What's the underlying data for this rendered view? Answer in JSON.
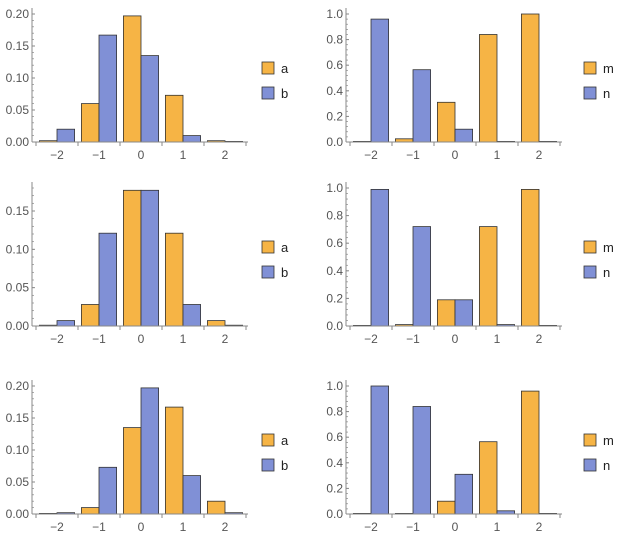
{
  "colors": {
    "series1": "#F6B445",
    "series2": "#8090D6",
    "axis": "#888888",
    "text": "#555555",
    "bar_edge": "#333333"
  },
  "chart_data": [
    {
      "type": "bar",
      "categories": [
        "-2",
        "-1",
        "0",
        "1",
        "2"
      ],
      "series": [
        {
          "name": "a",
          "values": [
            0.002,
            0.06,
            0.197,
            0.073,
            0.002
          ]
        },
        {
          "name": "b",
          "values": [
            0.02,
            0.167,
            0.135,
            0.01,
            0.0
          ]
        }
      ],
      "ylim": [
        0,
        0.2
      ],
      "yticks": [
        "0.00",
        "0.05",
        "0.10",
        "0.15",
        "0.20"
      ],
      "legend": "right"
    },
    {
      "type": "bar",
      "categories": [
        "-2",
        "-1",
        "0",
        "1",
        "2"
      ],
      "series": [
        {
          "name": "m",
          "values": [
            0.0,
            0.025,
            0.31,
            0.84,
            1.0
          ]
        },
        {
          "name": "n",
          "values": [
            0.96,
            0.565,
            0.1,
            0.0,
            0.0
          ]
        }
      ],
      "ylim": [
        0,
        1.0
      ],
      "yticks": [
        "0.0",
        "0.2",
        "0.4",
        "0.6",
        "0.8",
        "1.0"
      ],
      "legend": "right"
    },
    {
      "type": "bar",
      "categories": [
        "-2",
        "-1",
        "0",
        "1",
        "2"
      ],
      "series": [
        {
          "name": "a",
          "values": [
            0.001,
            0.028,
            0.177,
            0.121,
            0.007
          ]
        },
        {
          "name": "b",
          "values": [
            0.007,
            0.121,
            0.177,
            0.028,
            0.001
          ]
        }
      ],
      "ylim": [
        0,
        0.18
      ],
      "yticks": [
        "0.00",
        "0.05",
        "0.10",
        "0.15"
      ],
      "legend": "right"
    },
    {
      "type": "bar",
      "categories": [
        "-2",
        "-1",
        "0",
        "1",
        "2"
      ],
      "series": [
        {
          "name": "m",
          "values": [
            0.0,
            0.01,
            0.19,
            0.72,
            0.99
          ]
        },
        {
          "name": "n",
          "values": [
            0.99,
            0.72,
            0.19,
            0.01,
            0.0
          ]
        }
      ],
      "ylim": [
        0,
        1.0
      ],
      "yticks": [
        "0.0",
        "0.2",
        "0.4",
        "0.6",
        "0.8",
        "1.0"
      ],
      "legend": "right"
    },
    {
      "type": "bar",
      "categories": [
        "-2",
        "-1",
        "0",
        "1",
        "2"
      ],
      "series": [
        {
          "name": "a",
          "values": [
            0.0,
            0.01,
            0.135,
            0.167,
            0.02
          ]
        },
        {
          "name": "b",
          "values": [
            0.002,
            0.073,
            0.197,
            0.06,
            0.002
          ]
        }
      ],
      "ylim": [
        0,
        0.2
      ],
      "yticks": [
        "0.00",
        "0.05",
        "0.10",
        "0.15",
        "0.20"
      ],
      "legend": "right"
    },
    {
      "type": "bar",
      "categories": [
        "-2",
        "-1",
        "0",
        "1",
        "2"
      ],
      "series": [
        {
          "name": "m",
          "values": [
            0.0,
            0.0,
            0.1,
            0.565,
            0.96
          ]
        },
        {
          "name": "n",
          "values": [
            1.0,
            0.84,
            0.31,
            0.025,
            0.0
          ]
        }
      ],
      "ylim": [
        0,
        1.0
      ],
      "yticks": [
        "0.0",
        "0.2",
        "0.4",
        "0.6",
        "0.8",
        "1.0"
      ],
      "legend": "right"
    }
  ]
}
